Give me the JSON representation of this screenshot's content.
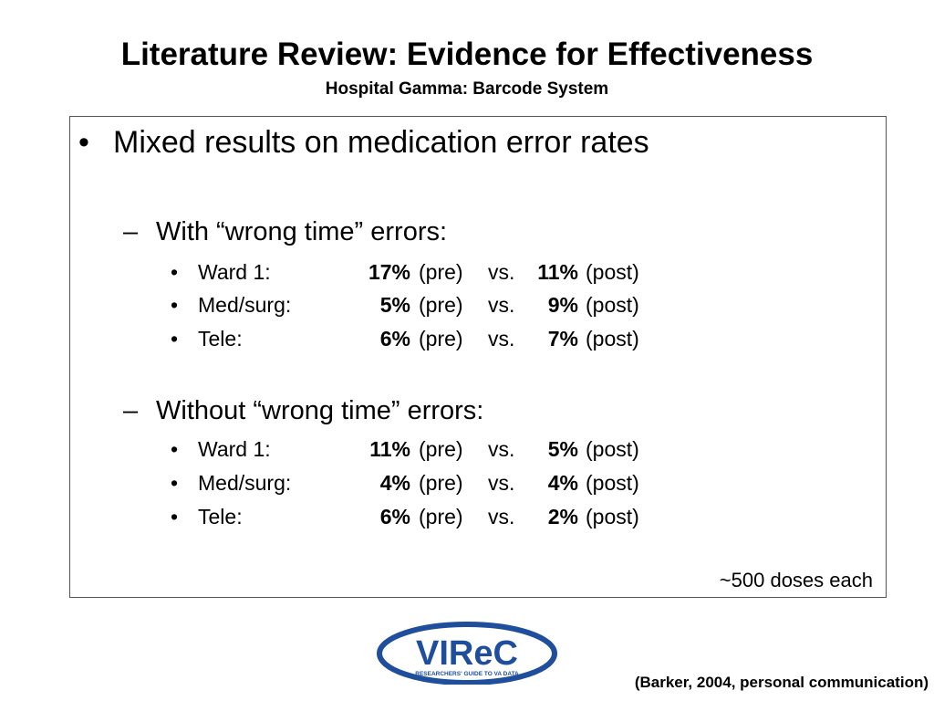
{
  "slide": {
    "title": "Literature Review: Evidence for Effectiveness",
    "subtitle": "Hospital Gamma: Barcode System"
  },
  "content": {
    "bullet_symbol": "•",
    "main_point": "Mixed results on medication error rates",
    "dash_symbol": "–",
    "sections": [
      {
        "heading": "With “wrong time” errors:",
        "rows": [
          {
            "unit": "Ward 1:",
            "pre": "17%",
            "pre_tag": "(pre)",
            "vs": "vs.",
            "post": "11%",
            "post_tag": "(post)"
          },
          {
            "unit": "Med/surg:",
            "pre": "5%",
            "pre_tag": "(pre)",
            "vs": "vs.",
            "post": "9%",
            "post_tag": "(post)"
          },
          {
            "unit": "Tele:",
            "pre": "6%",
            "pre_tag": "(pre)",
            "vs": "vs.",
            "post": "7%",
            "post_tag": "(post)"
          }
        ]
      },
      {
        "heading": "Without “wrong time” errors:",
        "rows": [
          {
            "unit": "Ward 1:",
            "pre": "11%",
            "pre_tag": "(pre)",
            "vs": "vs.",
            "post": "5%",
            "post_tag": "(post)"
          },
          {
            "unit": "Med/surg:",
            "pre": "4%",
            "pre_tag": "(pre)",
            "vs": "vs.",
            "post": "4%",
            "post_tag": "(post)"
          },
          {
            "unit": "Tele:",
            "pre": "6%",
            "pre_tag": "(pre)",
            "vs": "vs.",
            "post": "2%",
            "post_tag": "(post)"
          }
        ]
      }
    ],
    "note": "~500 doses each"
  },
  "logo": {
    "text": "VIReC",
    "tagline": "RESEARCHERS' GUIDE TO VA DATA",
    "color": "#1f4e9c"
  },
  "citation": "(Barker, 2004, personal communication)"
}
